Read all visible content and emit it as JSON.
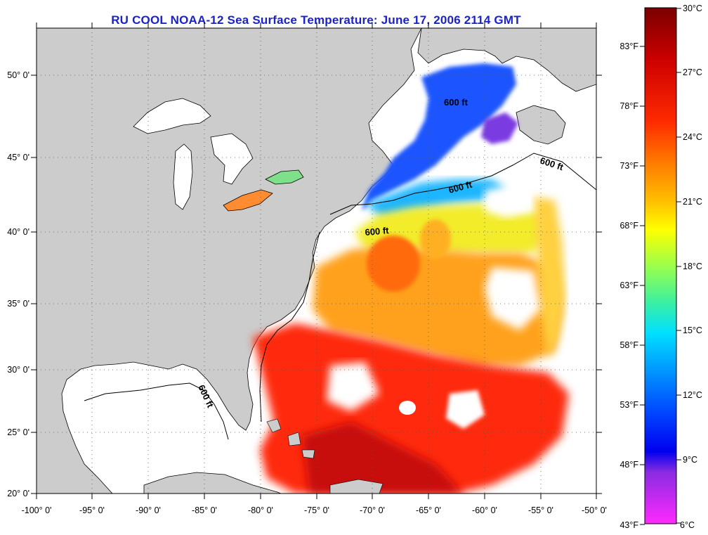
{
  "title": "RU COOL  NOAA-12  Sea Surface Temperature:  June 17, 2006 2114 GMT",
  "map": {
    "lat_labels": [
      "50° 0'",
      "45° 0'",
      "40° 0'",
      "35° 0'",
      "30° 0'",
      "25° 0'",
      "20° 0'"
    ],
    "lon_labels": [
      "-100° 0'",
      "-95° 0'",
      "-90° 0'",
      "-85° 0'",
      "-80° 0'",
      "-75° 0'",
      "-70° 0'",
      "-65° 0'",
      "-60° 0'",
      "-55° 0'",
      "-50° 0'"
    ],
    "isobath_label": "600 ft",
    "isobath_labels": [
      "600 ft",
      "600 ft",
      "600 ft",
      "600 ft",
      "600 ft"
    ],
    "land_color": "#cccccc",
    "cloud_color": "#ffffff"
  },
  "colorbar": {
    "celsius": [
      "30°C",
      "27°C",
      "24°C",
      "21°C",
      "18°C",
      "15°C",
      "12°C",
      "9°C",
      "6°C"
    ],
    "fahrenheit": [
      "83°F",
      "78°F",
      "73°F",
      "68°F",
      "63°F",
      "58°F",
      "53°F",
      "48°F",
      "43°F"
    ],
    "colors": [
      "#8b0000",
      "#ff0000",
      "#ff8c00",
      "#ffff00",
      "#7fff7f",
      "#00e5ff",
      "#0064ff",
      "#0000ff",
      "#8a2be2",
      "#ff00ff"
    ]
  }
}
